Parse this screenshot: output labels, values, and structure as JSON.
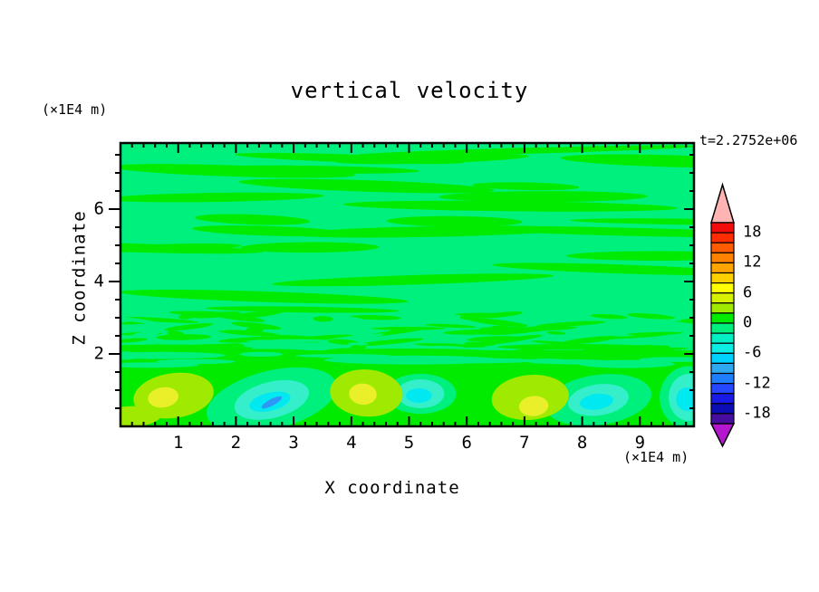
{
  "title": "vertical velocity",
  "timestamp": "t=2.2752e+06",
  "axes": {
    "x": {
      "label": "X coordinate",
      "unit": "(×1E4 m)",
      "tick_labels": [
        "1",
        "2",
        "3",
        "4",
        "5",
        "6",
        "7",
        "8",
        "9"
      ],
      "tick_values": [
        1,
        2,
        3,
        4,
        5,
        6,
        7,
        8,
        9
      ],
      "minor_step": 0.2,
      "range": [
        0,
        9.94
      ]
    },
    "z": {
      "label": "Z coordinate",
      "unit": "(×1E4 m)",
      "tick_labels": [
        "2",
        "4",
        "6"
      ],
      "tick_values": [
        2,
        4,
        6
      ],
      "minor_step": 0.5,
      "range": [
        0,
        7.82
      ]
    }
  },
  "colorbar": {
    "labels": [
      "18",
      "12",
      "6",
      "0",
      "-6",
      "-12",
      "-18"
    ],
    "label_values": [
      18,
      12,
      6,
      0,
      -6,
      -12,
      -18
    ],
    "level_min": -20,
    "level_max": 20,
    "level_step": 2,
    "over_color": "#FFB4B4",
    "under_color": "#B517CE",
    "box_colors": [
      "#F20C0C",
      "#FF2D00",
      "#FF5C00",
      "#FF8200",
      "#FFA500",
      "#FFD000",
      "#FFFF00",
      "#D6F000",
      "#9FEA00",
      "#00EB00",
      "#00F07D",
      "#00EFC4",
      "#0CEDE4",
      "#00D2FF",
      "#2FA8F2",
      "#1E7EFF",
      "#2447FF",
      "#1A1AE6",
      "#0D0DB4",
      "#460D9E"
    ]
  },
  "field_colors": {
    "green": "#00EB00",
    "spring": "#00F07D",
    "chartreuse": "#9FEA00",
    "yellow": "#E9F02A",
    "aqua": "#35EFCB",
    "cyan": "#00E9F0",
    "blue": "#2E96F5"
  },
  "chart_data": {
    "type": "heatmap",
    "subtype": "filled-contour",
    "title": "vertical velocity",
    "xlabel": "X coordinate (×1E4 m)",
    "ylabel": "Z coordinate (×1E4 m)",
    "time_annotation": "t=2.2752e+06",
    "xlim": [
      0,
      9.94
    ],
    "ylim": [
      0,
      7.82
    ],
    "grid": false,
    "legend": "vertical color bar at right, levels -20 to 20 step 2, labeled every 6",
    "contour_levels": [
      -20,
      -18,
      -16,
      -14,
      -12,
      -10,
      -8,
      -6,
      -4,
      -2,
      0,
      2,
      4,
      6,
      8,
      10,
      12,
      14,
      16,
      18,
      20
    ],
    "background_pattern": "field mostly between -2 and +2: horizontal wavy streaks alternating green (0 to 2) and spring-green (-2 to 0); fine mottled transition band near z=2-3; larger convective cells below z=2",
    "features": [
      {
        "kind": "downdraft",
        "x": 2.62,
        "z": 0.73,
        "rx": 0.66,
        "rz": 0.5,
        "rot": -14,
        "blue": true,
        "min_level": -10
      },
      {
        "kind": "downdraft",
        "x": 5.2,
        "z": 0.9,
        "rx": 0.41,
        "rz": 0.4,
        "rot": 0,
        "surround": 1.5,
        "min_level": -8
      },
      {
        "kind": "downdraft",
        "x": 8.28,
        "z": 0.73,
        "rx": 0.53,
        "rz": 0.43,
        "rot": -8,
        "min_level": -8
      },
      {
        "kind": "downdraft",
        "x": 9.85,
        "z": 0.8,
        "rx": 0.35,
        "rz": 0.65,
        "rot": 0,
        "surround": 1.45,
        "min_level": -8
      },
      {
        "kind": "updraft",
        "x": 0.92,
        "z": 0.85,
        "rx": 0.7,
        "rz": 0.62,
        "rot": -8,
        "core_dx": -0.18,
        "core_dz": -0.05,
        "peak_level": 6
      },
      {
        "kind": "updraft",
        "x": 0.12,
        "z": 0.25,
        "rx": 0.6,
        "rz": 0.3,
        "rot": -5,
        "core": false,
        "peak_level": 4
      },
      {
        "kind": "updraft",
        "x": 4.26,
        "z": 0.92,
        "rx": 0.63,
        "rz": 0.65,
        "rot": 4,
        "core_dx": -0.06,
        "core_dz": -0.03,
        "peak_level": 6
      },
      {
        "kind": "updraft",
        "x": 7.1,
        "z": 0.8,
        "rx": 0.67,
        "rz": 0.62,
        "rot": -5,
        "core_dx": 0.06,
        "core_dz": -0.24,
        "peak_level": 6
      }
    ]
  }
}
